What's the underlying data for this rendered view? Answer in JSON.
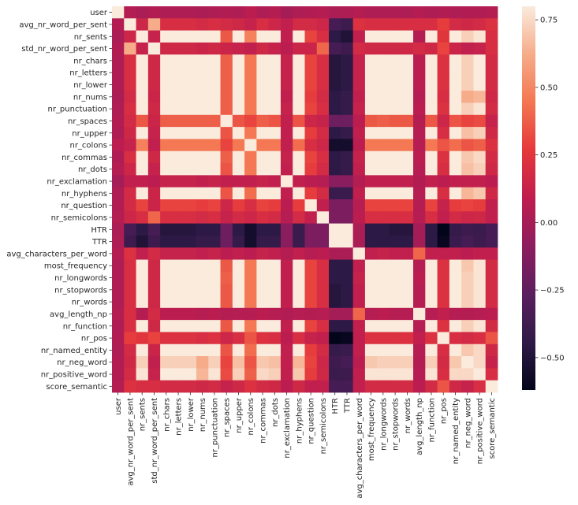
{
  "chart_data": {
    "type": "heatmap",
    "title": "",
    "xlabel": "",
    "ylabel": "",
    "labels": [
      "user",
      "avg_nr_word_per_sent",
      "nr_sents",
      "std_nr_word_per_sent",
      "nr_chars",
      "nr_letters",
      "nr_lower",
      "nr_nums",
      "nr_punctuation",
      "nr_spaces",
      "nr_upper",
      "nr_colons",
      "nr_commas",
      "nr_dots",
      "nr_exclamation",
      "nr_hyphens",
      "nr_question",
      "nr_semicolons",
      "HTR",
      "TTR",
      "avg_characters_per_word",
      "most_frequency",
      "nr_longwords",
      "nr_stopwords",
      "nr_words",
      "avg_length_np",
      "nr_function",
      "nr_pos",
      "nr_named_entity",
      "nr_neg_word",
      "nr_positive_word",
      "score_semantic"
    ],
    "colorbar": {
      "range": [
        -0.62,
        0.8
      ],
      "ticks": [
        0.75,
        0.5,
        0.25,
        0.0,
        -0.25,
        -0.5
      ],
      "tick_labels": [
        "0.75",
        "0.50",
        "0.25",
        "0.00",
        "−0.25",
        "−0.50"
      ]
    },
    "values": [
      [
        1.0,
        0.05,
        0.02,
        0.04,
        0.03,
        0.03,
        0.03,
        0.02,
        0.03,
        0.04,
        0.03,
        0.08,
        0.03,
        0.05,
        0.0,
        0.03,
        0.04,
        0.05,
        0.02,
        0.03,
        0.05,
        0.03,
        0.03,
        0.03,
        0.03,
        0.05,
        0.03,
        0.04,
        0.03,
        0.04,
        0.04,
        0.05
      ],
      [
        0.05,
        1.0,
        0.15,
        0.62,
        0.2,
        0.2,
        0.2,
        0.18,
        0.2,
        0.18,
        0.16,
        0.12,
        0.2,
        0.15,
        0.1,
        0.18,
        0.18,
        0.15,
        -0.35,
        -0.38,
        0.22,
        0.2,
        0.2,
        0.2,
        0.2,
        0.2,
        0.2,
        0.28,
        0.18,
        0.16,
        0.18,
        0.22
      ],
      [
        0.02,
        0.15,
        1.0,
        0.12,
        0.98,
        0.98,
        0.98,
        0.96,
        0.97,
        0.36,
        0.9,
        0.48,
        0.95,
        0.92,
        0.1,
        0.88,
        0.3,
        0.2,
        -0.45,
        -0.5,
        0.1,
        0.95,
        0.95,
        0.96,
        0.96,
        0.05,
        0.96,
        0.25,
        0.9,
        0.72,
        0.78,
        0.2
      ],
      [
        0.04,
        0.62,
        0.12,
        1.0,
        0.16,
        0.16,
        0.16,
        0.14,
        0.16,
        0.14,
        0.12,
        0.1,
        0.16,
        0.12,
        0.08,
        0.14,
        0.14,
        0.4,
        -0.35,
        -0.38,
        0.18,
        0.16,
        0.16,
        0.16,
        0.16,
        0.18,
        0.16,
        0.3,
        0.14,
        0.1,
        0.12,
        0.2
      ],
      [
        0.03,
        0.2,
        0.98,
        0.16,
        1.0,
        1.0,
        1.0,
        0.97,
        0.98,
        0.38,
        0.92,
        0.45,
        0.96,
        0.93,
        0.12,
        0.9,
        0.3,
        0.2,
        -0.48,
        -0.45,
        0.12,
        0.97,
        0.98,
        0.98,
        0.98,
        0.08,
        0.98,
        0.22,
        0.92,
        0.72,
        0.8,
        0.18
      ],
      [
        0.03,
        0.2,
        0.98,
        0.16,
        1.0,
        1.0,
        1.0,
        0.97,
        0.98,
        0.38,
        0.92,
        0.45,
        0.96,
        0.93,
        0.12,
        0.9,
        0.3,
        0.2,
        -0.48,
        -0.45,
        0.12,
        0.97,
        0.98,
        0.98,
        0.98,
        0.08,
        0.98,
        0.22,
        0.92,
        0.72,
        0.8,
        0.18
      ],
      [
        0.03,
        0.2,
        0.98,
        0.16,
        1.0,
        1.0,
        1.0,
        0.97,
        0.98,
        0.38,
        0.92,
        0.45,
        0.96,
        0.93,
        0.12,
        0.9,
        0.3,
        0.2,
        -0.48,
        -0.45,
        0.12,
        0.97,
        0.98,
        0.98,
        0.98,
        0.08,
        0.98,
        0.22,
        0.92,
        0.72,
        0.8,
        0.18
      ],
      [
        0.02,
        0.18,
        0.96,
        0.14,
        0.97,
        0.97,
        0.97,
        1.0,
        0.96,
        0.38,
        0.9,
        0.45,
        0.94,
        0.92,
        0.1,
        0.88,
        0.28,
        0.18,
        -0.45,
        -0.42,
        0.1,
        0.95,
        0.95,
        0.96,
        0.96,
        0.06,
        0.95,
        0.2,
        0.9,
        0.62,
        0.65,
        0.16
      ],
      [
        0.03,
        0.2,
        0.97,
        0.16,
        0.98,
        0.98,
        0.98,
        0.96,
        1.0,
        0.38,
        0.9,
        0.45,
        0.96,
        0.92,
        0.12,
        0.9,
        0.3,
        0.2,
        -0.45,
        -0.42,
        0.12,
        0.96,
        0.97,
        0.97,
        0.97,
        0.08,
        0.96,
        0.22,
        0.9,
        0.72,
        0.78,
        0.18
      ],
      [
        0.04,
        0.18,
        0.36,
        0.14,
        0.38,
        0.38,
        0.38,
        0.38,
        0.38,
        1.0,
        0.35,
        0.3,
        0.38,
        0.35,
        0.1,
        0.35,
        0.15,
        0.12,
        -0.2,
        -0.2,
        0.08,
        0.36,
        0.38,
        0.36,
        0.36,
        0.05,
        0.36,
        0.15,
        0.35,
        0.3,
        0.32,
        0.12
      ],
      [
        0.03,
        0.16,
        0.9,
        0.12,
        0.92,
        0.92,
        0.92,
        0.9,
        0.9,
        0.35,
        1.0,
        0.45,
        0.88,
        0.85,
        0.1,
        0.82,
        0.28,
        0.18,
        -0.45,
        -0.42,
        0.1,
        0.9,
        0.9,
        0.9,
        0.9,
        0.06,
        0.9,
        0.2,
        0.85,
        0.68,
        0.72,
        0.16
      ],
      [
        0.08,
        0.12,
        0.48,
        0.1,
        0.45,
        0.45,
        0.45,
        0.45,
        0.45,
        0.3,
        0.45,
        1.0,
        0.45,
        0.45,
        0.1,
        0.42,
        0.2,
        0.15,
        -0.55,
        -0.55,
        0.08,
        0.45,
        0.45,
        0.45,
        0.45,
        0.06,
        0.45,
        0.35,
        0.42,
        0.35,
        0.38,
        0.22
      ],
      [
        0.03,
        0.2,
        0.95,
        0.16,
        0.96,
        0.96,
        0.96,
        0.94,
        0.96,
        0.38,
        0.88,
        0.45,
        1.0,
        0.9,
        0.12,
        0.88,
        0.3,
        0.2,
        -0.45,
        -0.42,
        0.12,
        0.94,
        0.95,
        0.95,
        0.95,
        0.08,
        0.95,
        0.22,
        0.88,
        0.7,
        0.75,
        0.18
      ],
      [
        0.05,
        0.15,
        0.92,
        0.12,
        0.93,
        0.93,
        0.93,
        0.92,
        0.92,
        0.35,
        0.85,
        0.45,
        0.9,
        1.0,
        0.1,
        0.85,
        0.28,
        0.18,
        -0.45,
        -0.42,
        0.1,
        0.92,
        0.92,
        0.92,
        0.92,
        0.06,
        0.92,
        0.2,
        0.86,
        0.68,
        0.72,
        0.16
      ],
      [
        0.0,
        0.1,
        0.1,
        0.08,
        0.12,
        0.12,
        0.12,
        0.1,
        0.12,
        0.1,
        0.1,
        0.1,
        0.12,
        0.1,
        1.0,
        0.1,
        0.08,
        0.06,
        -0.1,
        -0.1,
        0.05,
        0.1,
        0.1,
        0.1,
        0.1,
        0.04,
        0.1,
        0.08,
        0.1,
        0.1,
        0.1,
        0.08
      ],
      [
        0.03,
        0.18,
        0.88,
        0.14,
        0.9,
        0.9,
        0.9,
        0.88,
        0.9,
        0.35,
        0.82,
        0.42,
        0.88,
        0.85,
        0.1,
        1.0,
        0.28,
        0.18,
        -0.4,
        -0.4,
        0.1,
        0.88,
        0.9,
        0.88,
        0.88,
        0.06,
        0.88,
        0.2,
        0.84,
        0.65,
        0.7,
        0.16
      ],
      [
        0.04,
        0.18,
        0.3,
        0.14,
        0.3,
        0.3,
        0.3,
        0.28,
        0.3,
        0.15,
        0.28,
        0.2,
        0.3,
        0.28,
        0.08,
        0.28,
        1.0,
        0.1,
        -0.15,
        -0.15,
        0.06,
        0.3,
        0.3,
        0.3,
        0.3,
        0.05,
        0.3,
        0.12,
        0.28,
        0.3,
        0.28,
        0.1
      ],
      [
        0.05,
        0.15,
        0.2,
        0.4,
        0.2,
        0.2,
        0.2,
        0.18,
        0.2,
        0.12,
        0.18,
        0.15,
        0.2,
        0.18,
        0.06,
        0.18,
        0.1,
        1.0,
        -0.15,
        -0.15,
        0.08,
        0.2,
        0.2,
        0.2,
        0.2,
        0.06,
        0.2,
        0.1,
        0.18,
        0.15,
        0.16,
        0.1
      ],
      [
        0.02,
        -0.35,
        -0.45,
        -0.35,
        -0.48,
        -0.48,
        -0.48,
        -0.45,
        -0.45,
        -0.2,
        -0.45,
        -0.55,
        -0.45,
        -0.45,
        -0.1,
        -0.4,
        -0.15,
        -0.15,
        1.0,
        0.98,
        0.02,
        -0.45,
        -0.45,
        -0.48,
        -0.48,
        0.0,
        -0.45,
        -0.62,
        -0.42,
        -0.38,
        -0.4,
        -0.35
      ],
      [
        0.03,
        -0.38,
        -0.5,
        -0.38,
        -0.45,
        -0.45,
        -0.45,
        -0.42,
        -0.42,
        -0.2,
        -0.42,
        -0.55,
        -0.42,
        -0.42,
        -0.1,
        -0.4,
        -0.15,
        -0.15,
        0.98,
        1.0,
        0.02,
        -0.45,
        -0.45,
        -0.45,
        -0.45,
        0.0,
        -0.45,
        -0.6,
        -0.4,
        -0.35,
        -0.38,
        -0.35
      ],
      [
        0.05,
        0.22,
        0.1,
        0.18,
        0.12,
        0.12,
        0.12,
        0.1,
        0.12,
        0.08,
        0.1,
        0.08,
        0.12,
        0.1,
        0.05,
        0.1,
        0.06,
        0.08,
        0.02,
        0.02,
        1.0,
        0.1,
        0.12,
        0.1,
        0.1,
        0.4,
        0.1,
        0.1,
        0.1,
        0.08,
        0.1,
        0.1
      ],
      [
        0.03,
        0.2,
        0.95,
        0.16,
        0.97,
        0.97,
        0.97,
        0.95,
        0.96,
        0.36,
        0.9,
        0.45,
        0.94,
        0.92,
        0.1,
        0.88,
        0.3,
        0.2,
        -0.45,
        -0.45,
        0.1,
        1.0,
        0.97,
        0.97,
        0.97,
        0.06,
        0.97,
        0.22,
        0.9,
        0.7,
        0.78,
        0.18
      ],
      [
        0.03,
        0.2,
        0.95,
        0.16,
        0.98,
        0.98,
        0.98,
        0.95,
        0.97,
        0.38,
        0.9,
        0.45,
        0.95,
        0.92,
        0.1,
        0.9,
        0.3,
        0.2,
        -0.45,
        -0.45,
        0.12,
        0.97,
        1.0,
        0.97,
        0.97,
        0.08,
        0.97,
        0.22,
        0.9,
        0.72,
        0.78,
        0.18
      ],
      [
        0.03,
        0.2,
        0.96,
        0.16,
        0.98,
        0.98,
        0.98,
        0.96,
        0.97,
        0.36,
        0.9,
        0.45,
        0.95,
        0.92,
        0.1,
        0.88,
        0.3,
        0.2,
        -0.48,
        -0.45,
        0.1,
        0.97,
        0.97,
        1.0,
        0.99,
        0.06,
        0.98,
        0.22,
        0.9,
        0.72,
        0.78,
        0.18
      ],
      [
        0.03,
        0.2,
        0.96,
        0.16,
        0.98,
        0.98,
        0.98,
        0.96,
        0.97,
        0.36,
        0.9,
        0.45,
        0.95,
        0.92,
        0.1,
        0.88,
        0.3,
        0.2,
        -0.48,
        -0.45,
        0.1,
        0.97,
        0.97,
        0.99,
        1.0,
        0.06,
        0.98,
        0.22,
        0.9,
        0.72,
        0.78,
        0.18
      ],
      [
        0.05,
        0.2,
        0.05,
        0.18,
        0.08,
        0.08,
        0.08,
        0.06,
        0.08,
        0.05,
        0.06,
        0.06,
        0.08,
        0.06,
        0.04,
        0.06,
        0.05,
        0.06,
        0.0,
        0.0,
        0.4,
        0.06,
        0.08,
        0.06,
        0.06,
        1.0,
        0.06,
        0.1,
        0.06,
        0.05,
        0.06,
        0.08
      ],
      [
        0.03,
        0.2,
        0.96,
        0.16,
        0.98,
        0.98,
        0.98,
        0.95,
        0.96,
        0.36,
        0.9,
        0.45,
        0.95,
        0.92,
        0.1,
        0.88,
        0.3,
        0.2,
        -0.45,
        -0.45,
        0.1,
        0.97,
        0.97,
        0.98,
        0.98,
        0.06,
        1.0,
        0.22,
        0.9,
        0.72,
        0.78,
        0.18
      ],
      [
        0.04,
        0.28,
        0.25,
        0.3,
        0.22,
        0.22,
        0.22,
        0.2,
        0.22,
        0.15,
        0.2,
        0.35,
        0.22,
        0.2,
        0.08,
        0.2,
        0.12,
        0.1,
        -0.62,
        -0.6,
        0.1,
        0.22,
        0.22,
        0.22,
        0.22,
        0.1,
        0.22,
        1.0,
        0.2,
        0.18,
        0.2,
        0.35
      ],
      [
        0.03,
        0.18,
        0.9,
        0.14,
        0.92,
        0.92,
        0.92,
        0.9,
        0.9,
        0.35,
        0.85,
        0.42,
        0.88,
        0.86,
        0.1,
        0.84,
        0.28,
        0.18,
        -0.42,
        -0.4,
        0.1,
        0.9,
        0.9,
        0.9,
        0.9,
        0.06,
        0.9,
        0.2,
        1.0,
        0.7,
        0.75,
        0.16
      ],
      [
        0.04,
        0.16,
        0.72,
        0.1,
        0.72,
        0.72,
        0.72,
        0.62,
        0.72,
        0.3,
        0.68,
        0.35,
        0.7,
        0.68,
        0.1,
        0.65,
        0.3,
        0.15,
        -0.38,
        -0.35,
        0.08,
        0.7,
        0.72,
        0.72,
        0.72,
        0.05,
        0.72,
        0.18,
        0.7,
        1.0,
        0.75,
        0.12
      ],
      [
        0.04,
        0.18,
        0.78,
        0.12,
        0.8,
        0.8,
        0.8,
        0.65,
        0.78,
        0.32,
        0.72,
        0.38,
        0.75,
        0.72,
        0.1,
        0.7,
        0.28,
        0.16,
        -0.4,
        -0.38,
        0.1,
        0.78,
        0.78,
        0.78,
        0.78,
        0.06,
        0.78,
        0.2,
        0.75,
        0.75,
        1.0,
        0.2
      ],
      [
        0.05,
        0.22,
        0.2,
        0.2,
        0.18,
        0.18,
        0.18,
        0.16,
        0.18,
        0.12,
        0.16,
        0.22,
        0.18,
        0.16,
        0.08,
        0.16,
        0.1,
        0.1,
        -0.35,
        -0.35,
        0.1,
        0.18,
        0.18,
        0.18,
        0.18,
        0.08,
        0.18,
        0.35,
        0.16,
        0.12,
        0.2,
        1.0
      ]
    ]
  }
}
